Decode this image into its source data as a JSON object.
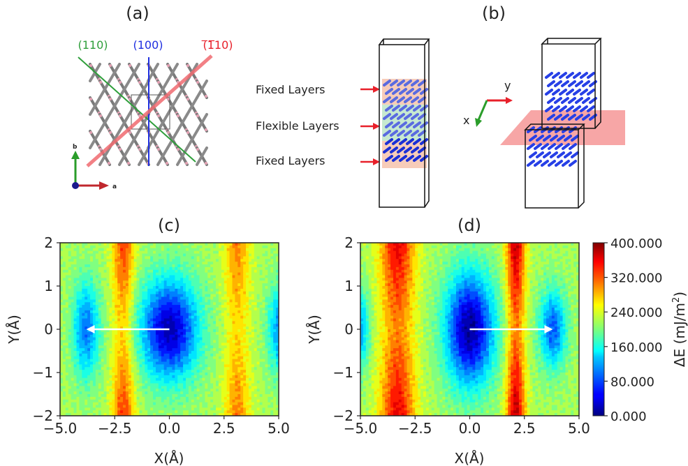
{
  "panels": {
    "a": {
      "label": "(a)",
      "plane_110": "(110)",
      "plane_100": "(100)",
      "plane_m110": "(̅1̅10)",
      "plane_m110_display": "(110)",
      "axis_b": "b",
      "axis_a": "a",
      "colors": {
        "plane_110": "#2e9e3a",
        "plane_100": "#1f2fe0",
        "plane_m110": "#e8202a"
      }
    },
    "b": {
      "label": "(b)",
      "fixed_top": "Fixed Layers",
      "flexible": "Flexible Layers",
      "fixed_bottom": "Fixed Layers",
      "axis_x": "x",
      "axis_y": "y"
    },
    "c": {
      "label": "(c)"
    },
    "d": {
      "label": "(d)"
    }
  },
  "colorbar": {
    "ticks": [
      "400.000",
      "320.000",
      "240.000",
      "160.000",
      "80.000",
      "0.000"
    ],
    "label": "ΔE (mJ/m²)",
    "label_main": "ΔE (mJ/m",
    "label_sup": "2",
    "label_close": ")",
    "colormap": "jet"
  },
  "chart_data": [
    {
      "type": "heatmap",
      "panel": "(c)",
      "xlabel": "X(Å)",
      "ylabel": "Y(Å)",
      "xlim": [
        -5.0,
        5.0
      ],
      "ylim": [
        -2,
        2
      ],
      "xticks": [
        "−5.0",
        "−2.5",
        "0.0",
        "2.5",
        "5.0"
      ],
      "yticks": [
        "2",
        "1",
        "0",
        "−1",
        "−2"
      ],
      "zlim": [
        0,
        400
      ],
      "zunit": "mJ/m²",
      "arrow": {
        "from": [
          0.0,
          0.0
        ],
        "to": [
          -3.8,
          0.0
        ]
      },
      "minima": [
        {
          "x": 0.0,
          "y": 0.0,
          "value": 20,
          "sx": 1.3,
          "sy": 1.15
        },
        {
          "x": -3.8,
          "y": 0.0,
          "value": 95,
          "sx": 0.6,
          "sy": 1.1
        },
        {
          "x": 5.0,
          "y": 0.0,
          "value": 110,
          "sx": 0.5,
          "sy": 1.0
        }
      ],
      "ridges": [
        {
          "x": -2.1,
          "value": 330,
          "width": 0.35
        },
        {
          "x": 3.1,
          "value": 300,
          "width": 0.4
        }
      ]
    },
    {
      "type": "heatmap",
      "panel": "(d)",
      "xlabel": "X(Å)",
      "ylabel": "Y(Å)",
      "xlim": [
        -5.0,
        5.0
      ],
      "ylim": [
        -2,
        2
      ],
      "xticks": [
        "−5.0",
        "−2.5",
        "0.0",
        "2.5",
        "5.0"
      ],
      "yticks": [
        "2",
        "1",
        "0",
        "−1",
        "−2"
      ],
      "zlim": [
        0,
        400
      ],
      "zunit": "mJ/m²",
      "arrow": {
        "from": [
          0.0,
          0.0
        ],
        "to": [
          3.8,
          0.0
        ]
      },
      "minima": [
        {
          "x": 0.0,
          "y": 0.0,
          "value": 10,
          "sx": 1.1,
          "sy": 1.3
        },
        {
          "x": 3.8,
          "y": 0.0,
          "value": 85,
          "sx": 0.6,
          "sy": 0.9
        },
        {
          "x": -5.0,
          "y": 0.0,
          "value": 120,
          "sx": 0.4,
          "sy": 0.9
        }
      ],
      "ridges": [
        {
          "x": -3.3,
          "value": 360,
          "width": 0.55
        },
        {
          "x": 2.1,
          "value": 380,
          "width": 0.3
        }
      ]
    }
  ]
}
